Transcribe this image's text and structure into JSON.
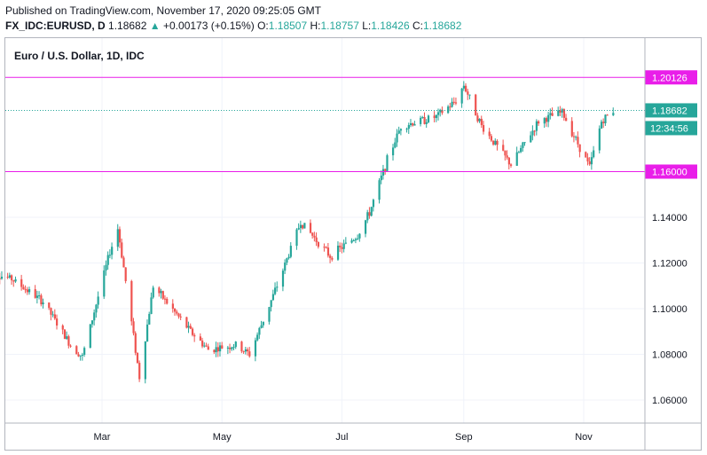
{
  "header": {
    "published": "Published on TradingView.com, November 17, 2020 09:25:05 GMT",
    "symbol": "FX_IDC:EURUSD, D",
    "last": "1.18682",
    "change_arrow": "▲",
    "change": "+0.00173 (+0.15%)",
    "o_label": "O:",
    "o_value": "1.18507",
    "h_label": "H:",
    "h_value": "1.18757",
    "l_label": "L:",
    "l_value": "1.18426",
    "c_label": "C:",
    "c_value": "1.18682"
  },
  "chart_title": "Euro / U.S. Dollar, 1D, IDC",
  "colors": {
    "up": "#26a69a",
    "down": "#ef5350",
    "level_line": "#e91ee9",
    "price_tag": "#26a69a",
    "grid": "#f0f3fa"
  },
  "chart_data": {
    "type": "candlestick",
    "title": "Euro / U.S. Dollar, 1D, IDC",
    "ylim": [
      1.05,
      1.215
    ],
    "y_ticks": [
      "1.06000",
      "1.08000",
      "1.10000",
      "1.12000",
      "1.14000"
    ],
    "y_tick_values": [
      1.06,
      1.08,
      1.1,
      1.12,
      1.14
    ],
    "x_labels": [
      "Mar",
      "May",
      "Jul",
      "Sep",
      "Nov"
    ],
    "x_label_dates": [
      "2020-03-01",
      "2020-05-01",
      "2020-07-01",
      "2020-09-01",
      "2020-11-01"
    ],
    "horizontal_levels": [
      {
        "label": "1.20126",
        "value": 1.20126
      },
      {
        "label": "1.16000",
        "value": 1.16
      }
    ],
    "last_price": {
      "label": "1.18682",
      "value": 1.18682,
      "countdown": "12:34:56"
    },
    "close_series": {
      "dates": [
        "2020-01-02",
        "2020-01-15",
        "2020-01-31",
        "2020-02-14",
        "2020-02-20",
        "2020-03-05",
        "2020-03-09",
        "2020-03-12",
        "2020-03-20",
        "2020-03-27",
        "2020-04-15",
        "2020-04-24",
        "2020-05-08",
        "2020-05-15",
        "2020-05-29",
        "2020-06-10",
        "2020-06-25",
        "2020-07-09",
        "2020-07-15",
        "2020-07-24",
        "2020-07-31",
        "2020-08-18",
        "2020-08-28",
        "2020-09-01",
        "2020-09-10",
        "2020-09-25",
        "2020-10-09",
        "2020-10-21",
        "2020-11-04",
        "2020-11-10",
        "2020-11-16"
      ],
      "values": [
        1.116,
        1.113,
        1.103,
        1.084,
        1.079,
        1.125,
        1.135,
        1.118,
        1.07,
        1.11,
        1.09,
        1.082,
        1.084,
        1.08,
        1.11,
        1.138,
        1.123,
        1.132,
        1.142,
        1.165,
        1.18,
        1.184,
        1.191,
        1.198,
        1.18,
        1.163,
        1.182,
        1.186,
        1.162,
        1.182,
        1.1868
      ]
    }
  }
}
